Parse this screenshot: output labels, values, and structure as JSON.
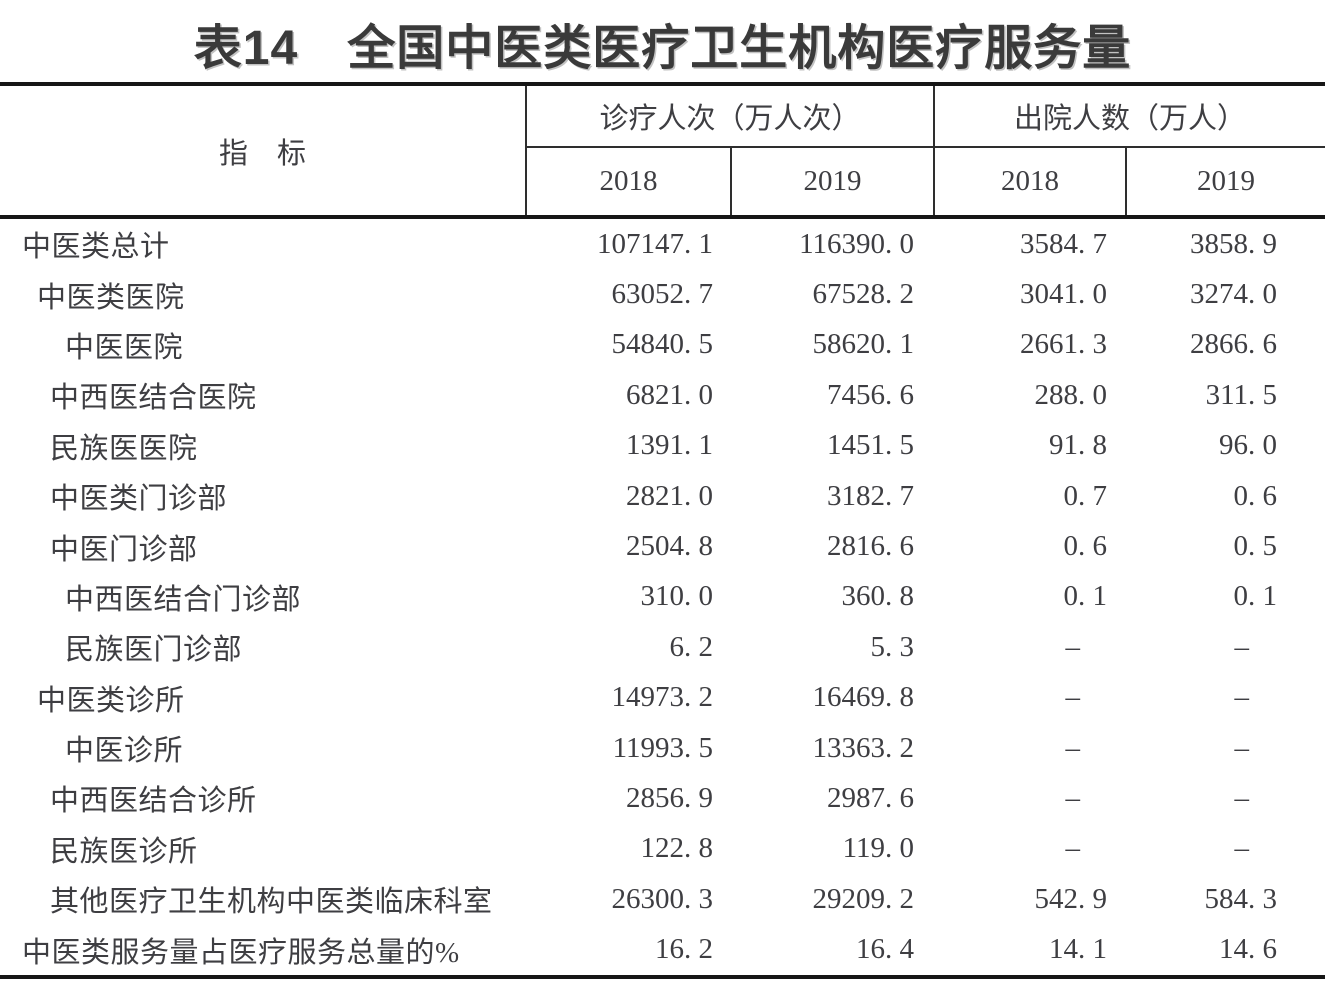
{
  "title": "表14　全国中医类医疗卫生机构医疗服务量",
  "table": {
    "header": {
      "indicator": "指　标",
      "groups": [
        {
          "label": "诊疗人次（万人次）",
          "years": [
            "2018",
            "2019"
          ]
        },
        {
          "label": "出院人数（万人）",
          "years": [
            "2018",
            "2019"
          ]
        }
      ]
    },
    "rows": [
      {
        "label": "中医类总计",
        "indent": 0,
        "values": [
          "107147. 1",
          "116390. 0",
          "3584. 7",
          "3858. 9"
        ]
      },
      {
        "label": "中医类医院",
        "indent": 1,
        "values": [
          "63052. 7",
          "67528. 2",
          "3041. 0",
          "3274. 0"
        ]
      },
      {
        "label": "中医医院",
        "indent": 3,
        "values": [
          "54840. 5",
          "58620. 1",
          "2661. 3",
          "2866. 6"
        ]
      },
      {
        "label": "中西医结合医院",
        "indent": 2,
        "values": [
          "6821. 0",
          "7456. 6",
          "288. 0",
          "311. 5"
        ]
      },
      {
        "label": "民族医医院",
        "indent": 2,
        "values": [
          "1391. 1",
          "1451. 5",
          "91. 8",
          "96. 0"
        ]
      },
      {
        "label": "中医类门诊部",
        "indent": 2,
        "values": [
          "2821. 0",
          "3182. 7",
          "0. 7",
          "0. 6"
        ]
      },
      {
        "label": "中医门诊部",
        "indent": 2,
        "values": [
          "2504. 8",
          "2816. 6",
          "0. 6",
          "0. 5"
        ]
      },
      {
        "label": "中西医结合门诊部",
        "indent": 3,
        "values": [
          "310. 0",
          "360. 8",
          "0. 1",
          "0. 1"
        ]
      },
      {
        "label": "民族医门诊部",
        "indent": 3,
        "values": [
          "6. 2",
          "5. 3",
          "–",
          "–"
        ]
      },
      {
        "label": "中医类诊所",
        "indent": 1,
        "values": [
          "14973. 2",
          "16469. 8",
          "–",
          "–"
        ]
      },
      {
        "label": "中医诊所",
        "indent": 3,
        "values": [
          "11993. 5",
          "13363. 2",
          "–",
          "–"
        ]
      },
      {
        "label": "中西医结合诊所",
        "indent": 2,
        "values": [
          "2856. 9",
          "2987. 6",
          "–",
          "–"
        ]
      },
      {
        "label": "民族医诊所",
        "indent": 2,
        "values": [
          "122. 8",
          "119. 0",
          "–",
          "–"
        ]
      },
      {
        "label": "其他医疗卫生机构中医类临床科室",
        "indent": 2,
        "values": [
          "26300. 3",
          "29209. 2",
          "542. 9",
          "584. 3"
        ]
      },
      {
        "label": "中医类服务量占医疗服务总量的%",
        "indent": 0,
        "values": [
          "16. 2",
          "16. 4",
          "14. 1",
          "14. 6"
        ]
      }
    ]
  }
}
